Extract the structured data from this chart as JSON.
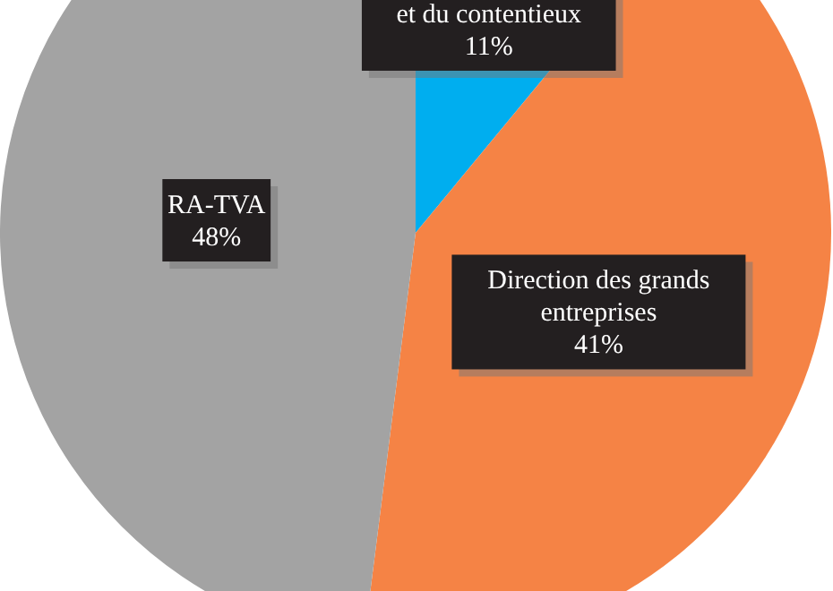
{
  "chart_data": {
    "type": "pie",
    "categories": [
      "et du contentieux",
      "Direction des grands entreprises",
      "RA-TVA"
    ],
    "values": [
      11,
      41,
      48
    ],
    "colors": [
      "#00aeef",
      "#f58345",
      "#a3a3a3"
    ],
    "value_labels": [
      "11%",
      "41%",
      "48%"
    ]
  }
}
